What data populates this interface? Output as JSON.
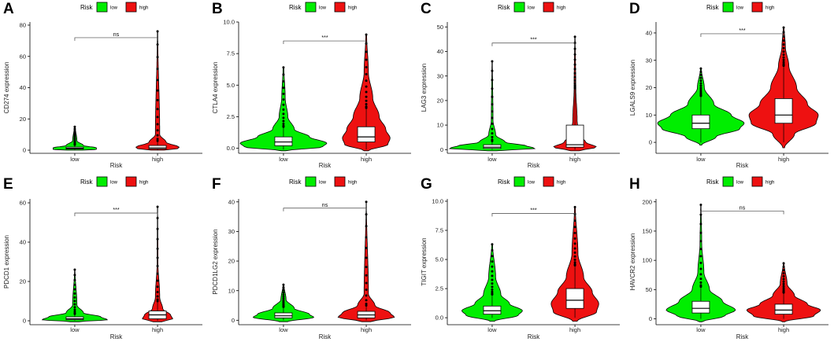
{
  "colors": {
    "low": "#00ee00",
    "high": "#ee1111",
    "line": "#000000"
  },
  "legend": {
    "title": "Risk",
    "items": [
      "low",
      "high"
    ]
  },
  "chart_data": [
    {
      "panel": "A",
      "type": "violin",
      "ylabel": "CD274 expression",
      "xlabel": "Risk",
      "categories": [
        "low",
        "high"
      ],
      "ylim": [
        -2,
        82
      ],
      "yticks": [
        0,
        20,
        40,
        60,
        80
      ],
      "significance": "ns",
      "groups": [
        {
          "name": "low",
          "median": 1.2,
          "q1": 0.7,
          "q3": 2.0,
          "whisker_low": 0,
          "whisker_high": 3.5,
          "max": 15,
          "violin": [
            [
              0,
              0.18
            ],
            [
              0.5,
              0.5
            ],
            [
              1.5,
              0.5
            ],
            [
              3,
              0.2
            ],
            [
              6,
              0.05
            ],
            [
              15,
              0.01
            ]
          ]
        },
        {
          "name": "high",
          "median": 1.5,
          "q1": 0.8,
          "q3": 3.0,
          "whisker_low": 0,
          "whisker_high": 6,
          "max": 76,
          "violin": [
            [
              0,
              0.15
            ],
            [
              0.5,
              0.45
            ],
            [
              2,
              0.5
            ],
            [
              5,
              0.2
            ],
            [
              10,
              0.05
            ],
            [
              76,
              0.005
            ]
          ]
        }
      ]
    },
    {
      "panel": "B",
      "type": "violin",
      "ylabel": "CTLA4 expression",
      "xlabel": "Risk",
      "categories": [
        "low",
        "high"
      ],
      "ylim": [
        -0.4,
        10.0
      ],
      "yticks": [
        0.0,
        2.5,
        5.0,
        7.5,
        10.0
      ],
      "significance": "***",
      "groups": [
        {
          "name": "low",
          "median": 0.5,
          "q1": 0.2,
          "q3": 0.9,
          "whisker_low": -0.1,
          "whisker_high": 1.7,
          "max": 6.4,
          "violin": [
            [
              -0.2,
              0.05
            ],
            [
              0.1,
              0.9
            ],
            [
              0.4,
              1.0
            ],
            [
              0.9,
              0.6
            ],
            [
              1.5,
              0.25
            ],
            [
              2.5,
              0.1
            ],
            [
              4,
              0.04
            ],
            [
              6.4,
              0.01
            ]
          ]
        },
        {
          "name": "high",
          "median": 0.9,
          "q1": 0.5,
          "q3": 1.7,
          "whisker_low": -0.1,
          "whisker_high": 3.2,
          "max": 9.0,
          "violin": [
            [
              -0.2,
              0.05
            ],
            [
              0.3,
              0.5
            ],
            [
              0.8,
              0.55
            ],
            [
              1.5,
              0.45
            ],
            [
              2.5,
              0.3
            ],
            [
              4,
              0.15
            ],
            [
              6,
              0.05
            ],
            [
              9,
              0.01
            ]
          ]
        }
      ]
    },
    {
      "panel": "C",
      "type": "violin",
      "ylabel": "LAG3 expression",
      "xlabel": "Risk",
      "categories": [
        "low",
        "high"
      ],
      "ylim": [
        -1.5,
        52
      ],
      "yticks": [
        0,
        10,
        20,
        30,
        40,
        50
      ],
      "significance": "***",
      "groups": [
        {
          "name": "low",
          "median": 1.0,
          "q1": 0.5,
          "q3": 2.0,
          "whisker_low": 0,
          "whisker_high": 3.5,
          "max": 36,
          "violin": [
            [
              -0.5,
              0.1
            ],
            [
              0.5,
              1.0
            ],
            [
              1.5,
              0.8
            ],
            [
              3,
              0.3
            ],
            [
              6,
              0.08
            ],
            [
              12,
              0.02
            ],
            [
              36,
              0.005
            ]
          ]
        },
        {
          "name": "high",
          "median": 2.0,
          "q1": 1.0,
          "q3": 10,
          "whisker_low": 0,
          "whisker_high": 25,
          "max": 46,
          "violin": [
            [
              -0.5,
              0.1
            ],
            [
              1,
              0.5
            ],
            [
              3,
              0.25
            ],
            [
              6,
              0.1
            ],
            [
              12,
              0.05
            ],
            [
              25,
              0.02
            ],
            [
              46,
              0.005
            ]
          ]
        }
      ]
    },
    {
      "panel": "D",
      "type": "violin",
      "ylabel": "LGALS9 expression",
      "xlabel": "Risk",
      "categories": [
        "low",
        "high"
      ],
      "ylim": [
        -4,
        44
      ],
      "yticks": [
        0,
        10,
        20,
        30,
        40
      ],
      "significance": "***",
      "groups": [
        {
          "name": "low",
          "median": 7,
          "q1": 5,
          "q3": 10,
          "whisker_low": 0,
          "whisker_high": 17,
          "max": 27,
          "violin": [
            [
              -1,
              0.02
            ],
            [
              2,
              0.35
            ],
            [
              5,
              0.9
            ],
            [
              7,
              1.0
            ],
            [
              10,
              0.7
            ],
            [
              14,
              0.3
            ],
            [
              20,
              0.08
            ],
            [
              27,
              0.01
            ]
          ]
        },
        {
          "name": "high",
          "median": 10,
          "q1": 7,
          "q3": 16,
          "whisker_low": 0,
          "whisker_high": 28,
          "max": 42,
          "violin": [
            [
              -2,
              0.02
            ],
            [
              3,
              0.25
            ],
            [
              7,
              0.75
            ],
            [
              10,
              0.8
            ],
            [
              14,
              0.55
            ],
            [
              20,
              0.3
            ],
            [
              28,
              0.12
            ],
            [
              35,
              0.04
            ],
            [
              42,
              0.01
            ]
          ]
        }
      ]
    },
    {
      "panel": "E",
      "type": "violin",
      "ylabel": "PDCD1 expression",
      "xlabel": "Risk",
      "categories": [
        "low",
        "high"
      ],
      "ylim": [
        -2,
        62
      ],
      "yticks": [
        0,
        20,
        40,
        60
      ],
      "significance": "***",
      "groups": [
        {
          "name": "low",
          "median": 1.0,
          "q1": 0.5,
          "q3": 2.0,
          "whisker_low": 0,
          "whisker_high": 3.5,
          "max": 26,
          "violin": [
            [
              -0.5,
              0.1
            ],
            [
              0.5,
              0.75
            ],
            [
              2,
              0.6
            ],
            [
              4,
              0.2
            ],
            [
              8,
              0.05
            ],
            [
              26,
              0.005
            ]
          ]
        },
        {
          "name": "high",
          "median": 3.0,
          "q1": 1.0,
          "q3": 5.0,
          "whisker_low": 0,
          "whisker_high": 10,
          "max": 58,
          "violin": [
            [
              -0.5,
              0.1
            ],
            [
              1,
              0.35
            ],
            [
              3,
              0.3
            ],
            [
              6,
              0.12
            ],
            [
              12,
              0.05
            ],
            [
              30,
              0.01
            ],
            [
              58,
              0.003
            ]
          ]
        }
      ]
    },
    {
      "panel": "F",
      "type": "violin",
      "ylabel": "PDCD1LG2 expression",
      "xlabel": "Risk",
      "categories": [
        "low",
        "high"
      ],
      "ylim": [
        -1.5,
        41
      ],
      "yticks": [
        0,
        10,
        20,
        30,
        40
      ],
      "significance": "ns",
      "groups": [
        {
          "name": "low",
          "median": 1.5,
          "q1": 0.8,
          "q3": 2.5,
          "whisker_low": 0,
          "whisker_high": 4.5,
          "max": 12,
          "violin": [
            [
              -0.5,
              0.1
            ],
            [
              1,
              0.7
            ],
            [
              2,
              0.6
            ],
            [
              4,
              0.25
            ],
            [
              7,
              0.06
            ],
            [
              12,
              0.01
            ]
          ]
        },
        {
          "name": "high",
          "median": 1.8,
          "q1": 0.8,
          "q3": 3.0,
          "whisker_low": 0,
          "whisker_high": 5.0,
          "max": 40,
          "violin": [
            [
              -0.5,
              0.1
            ],
            [
              1,
              0.65
            ],
            [
              2.5,
              0.55
            ],
            [
              5,
              0.2
            ],
            [
              9,
              0.05
            ],
            [
              40,
              0.003
            ]
          ]
        }
      ]
    },
    {
      "panel": "G",
      "type": "violin",
      "ylabel": "TIGIT expression",
      "xlabel": "Risk",
      "categories": [
        "low",
        "high"
      ],
      "ylim": [
        -0.6,
        10.2
      ],
      "yticks": [
        0.0,
        2.5,
        5.0,
        7.5,
        10.0
      ],
      "significance": "***",
      "groups": [
        {
          "name": "low",
          "median": 0.6,
          "q1": 0.3,
          "q3": 1.0,
          "whisker_low": 0,
          "whisker_high": 2.0,
          "max": 6.3,
          "violin": [
            [
              -0.3,
              0.05
            ],
            [
              0.2,
              0.6
            ],
            [
              0.6,
              0.7
            ],
            [
              1.2,
              0.4
            ],
            [
              2,
              0.2
            ],
            [
              3.5,
              0.08
            ],
            [
              6.3,
              0.01
            ]
          ]
        },
        {
          "name": "high",
          "median": 1.5,
          "q1": 0.8,
          "q3": 2.5,
          "whisker_low": 0,
          "whisker_high": 4.5,
          "max": 9.5,
          "violin": [
            [
              -0.3,
              0.05
            ],
            [
              0.5,
              0.5
            ],
            [
              1.2,
              0.55
            ],
            [
              2.2,
              0.4
            ],
            [
              3.5,
              0.2
            ],
            [
              5.5,
              0.07
            ],
            [
              9.5,
              0.01
            ]
          ]
        }
      ]
    },
    {
      "panel": "H",
      "type": "violin",
      "ylabel": "HAVCR2 expression",
      "xlabel": "Risk",
      "categories": [
        "low",
        "high"
      ],
      "ylim": [
        -10,
        205
      ],
      "yticks": [
        0,
        50,
        100,
        150,
        200
      ],
      "significance": "ns",
      "groups": [
        {
          "name": "low",
          "median": 18,
          "q1": 10,
          "q3": 30,
          "whisker_low": 0,
          "whisker_high": 55,
          "max": 195,
          "violin": [
            [
              -5,
              0.03
            ],
            [
              5,
              0.55
            ],
            [
              15,
              0.8
            ],
            [
              30,
              0.5
            ],
            [
              50,
              0.2
            ],
            [
              80,
              0.07
            ],
            [
              130,
              0.02
            ],
            [
              195,
              0.005
            ]
          ]
        },
        {
          "name": "high",
          "median": 15,
          "q1": 8,
          "q3": 25,
          "whisker_low": 0,
          "whisker_high": 45,
          "max": 95,
          "violin": [
            [
              -5,
              0.03
            ],
            [
              5,
              0.7
            ],
            [
              15,
              0.85
            ],
            [
              25,
              0.55
            ],
            [
              40,
              0.25
            ],
            [
              60,
              0.08
            ],
            [
              95,
              0.01
            ]
          ]
        }
      ]
    }
  ]
}
